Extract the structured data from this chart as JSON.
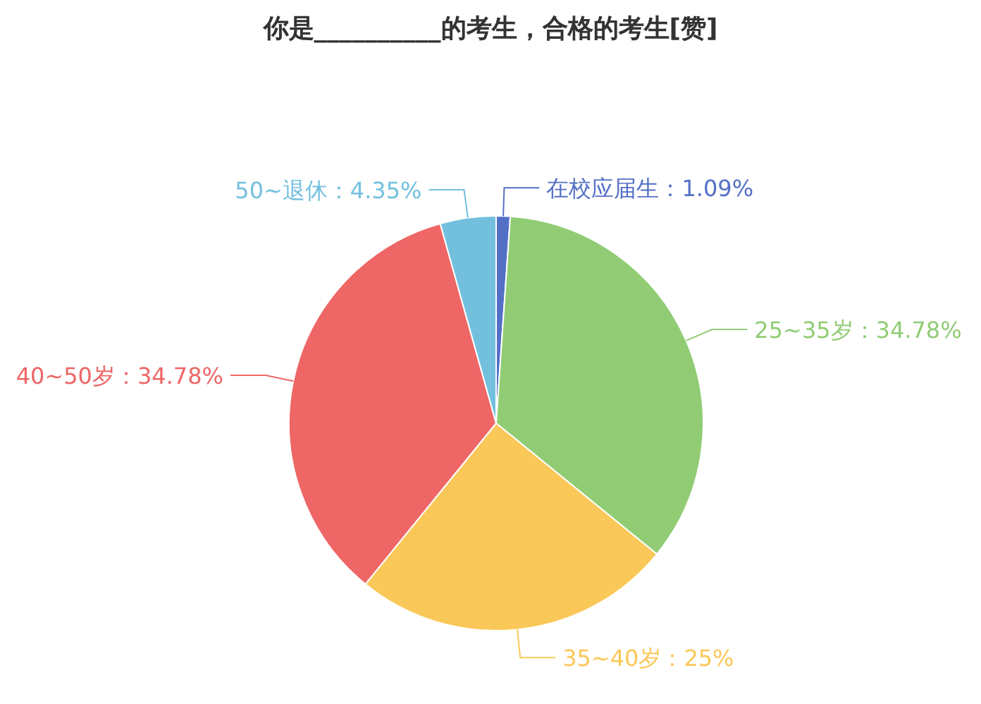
{
  "chart_data": {
    "type": "pie",
    "title": "你是__________的考生，合格的考生[赞]",
    "categories": [
      "在校应届生",
      "25~35岁",
      "35~40岁",
      "40~50岁",
      "50~退休"
    ],
    "values": [
      1.09,
      34.78,
      25,
      34.78,
      4.35
    ],
    "value_labels": [
      "1.09%",
      "34.78%",
      "25%",
      "34.78%",
      "4.35%"
    ],
    "colors": [
      "#5470c6",
      "#91cc75",
      "#fac858",
      "#ee6666",
      "#73c0de"
    ],
    "legend": false
  }
}
